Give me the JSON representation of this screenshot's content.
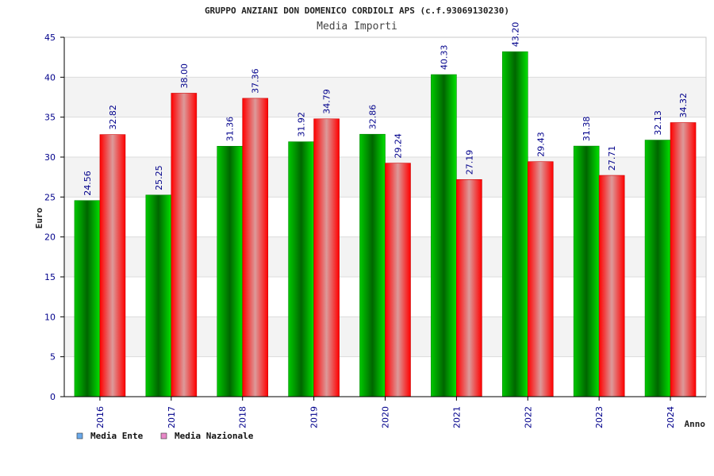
{
  "chart_data": {
    "type": "bar",
    "title": "GRUPPO ANZIANI DON DOMENICO CORDIOLI APS (c.f.93069130230)",
    "subtitle": "Media Importi",
    "xlabel": "Anno",
    "ylabel": "Euro",
    "ylim": [
      0,
      45
    ],
    "yticks": [
      "0",
      "5",
      "10",
      "15",
      "20",
      "25",
      "30",
      "35",
      "40",
      "45"
    ],
    "categories": [
      "2016",
      "2017",
      "2018",
      "2019",
      "2020",
      "2021",
      "2022",
      "2023",
      "2024"
    ],
    "series": [
      {
        "name": "Media Ente",
        "values": [
          24.56,
          25.25,
          31.36,
          31.92,
          32.86,
          40.33,
          43.2,
          31.38,
          32.13
        ],
        "labels": [
          "24.56",
          "25.25",
          "31.36",
          "31.92",
          "32.86",
          "40.33",
          "43.20",
          "31.38",
          "32.13"
        ]
      },
      {
        "name": "Media Nazionale",
        "values": [
          32.82,
          38.0,
          37.36,
          34.79,
          29.24,
          27.19,
          29.43,
          27.71,
          34.32
        ],
        "labels": [
          "32.82",
          "38.00",
          "37.36",
          "34.79",
          "29.24",
          "27.19",
          "29.43",
          "27.71",
          "34.32"
        ]
      }
    ],
    "grid": true,
    "legend": "bottom-left",
    "colors": {
      "media_ente": "#00a000",
      "media_nazionale": "#ff0000",
      "legend_ente": "#6aa9ea",
      "legend_nazionale": "#e888c8",
      "axis_text": "#00008b",
      "band": "#f3f3f3"
    }
  }
}
